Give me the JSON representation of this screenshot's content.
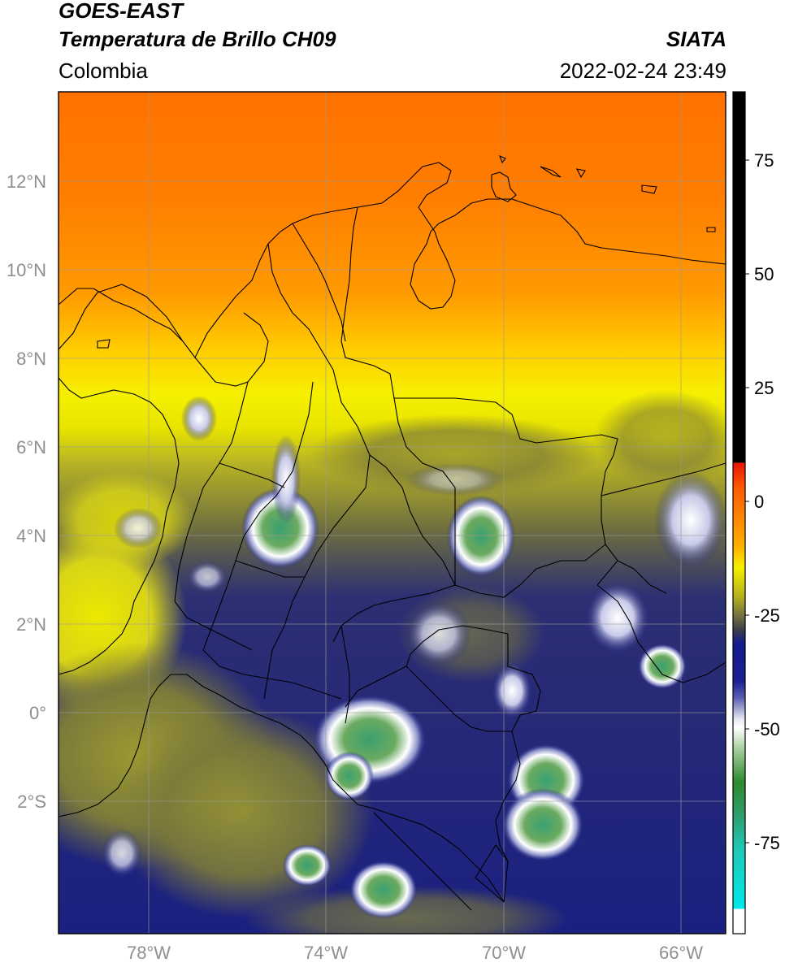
{
  "header": {
    "satellite": "GOES-EAST",
    "product": "Temperatura de Brillo CH09",
    "org": "SIATA",
    "region": "Colombia",
    "datetime": "2022-02-24 23:49"
  },
  "map": {
    "lat_labels": [
      "12°N",
      "10°N",
      "8°N",
      "6°N",
      "4°N",
      "2°N",
      "0°",
      "2°S"
    ],
    "lon_labels": [
      "78°W",
      "74°W",
      "70°W",
      "66°W"
    ]
  },
  "colorbar": {
    "ticks": [
      "75",
      "50",
      "25",
      "0",
      "-25",
      "-50",
      "-75"
    ],
    "tick_values": [
      75,
      50,
      25,
      0,
      -25,
      -50,
      -75
    ],
    "range": [
      -95,
      90
    ],
    "colors": {
      "black": "#000000",
      "red": "#e8140a",
      "orange": "#ff8a00",
      "yellow": "#f6f000",
      "olive": "#8c8c2a",
      "navy": "#101a86",
      "white": "#ffffff",
      "green": "#2e8a2e",
      "cyan": "#10e0d8"
    }
  }
}
